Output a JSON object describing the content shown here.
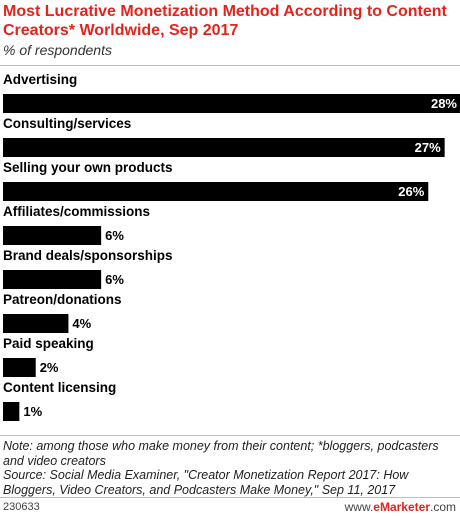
{
  "chart_data": {
    "type": "bar",
    "orientation": "horizontal",
    "title": "Most Lucrative Monetization Method According to Content Creators* Worldwide, Sep 2017",
    "subtitle": "% of respondents",
    "categories": [
      "Advertising",
      "Consulting/services",
      "Selling your own products",
      "Affiliates/commissions",
      "Brand deals/sponsorships",
      "Patreon/donations",
      "Paid speaking",
      "Content licensing"
    ],
    "values": [
      28,
      27,
      26,
      6,
      6,
      4,
      2,
      1
    ],
    "value_suffix": "%",
    "xlim": [
      0,
      28
    ],
    "grid": false,
    "bar_color": "#000000"
  },
  "note": "Note: among those who make money from their content; *bloggers, podcasters and video creators",
  "source": "Source: Social Media Examiner, \"Creator Monetization Report 2017: How Bloggers, Video Creators, and Podcasters Make Money,\" Sep 11, 2017",
  "footer": {
    "id": "230633",
    "brand_prefix": "www.",
    "brand_name": "eMarketer",
    "brand_suffix": ".com"
  },
  "colors": {
    "title": "#e2241c",
    "bar": "#000000",
    "rule": "#bdbdbd"
  }
}
